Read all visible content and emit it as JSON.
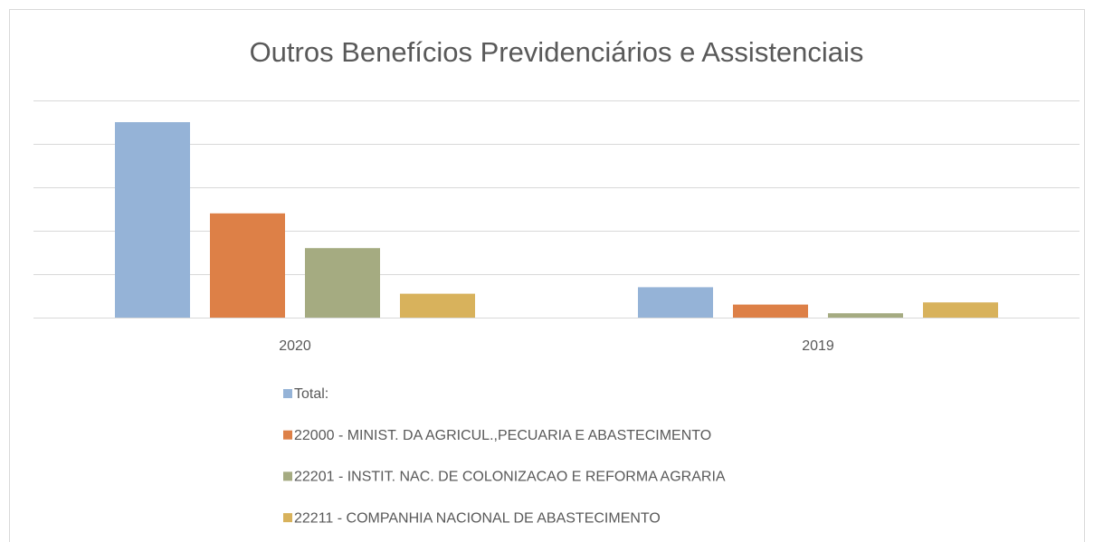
{
  "chart_data": {
    "type": "bar",
    "title": "Outros Benefícios Previdenciários e Assistenciais",
    "categories": [
      "2020",
      "2019"
    ],
    "series": [
      {
        "name": "Total:",
        "color": "#95b3d7",
        "values": [
          4.5,
          0.7
        ]
      },
      {
        "name": "22000 - MINIST. DA AGRICUL.,PECUARIA E ABASTECIMENTO",
        "color": "#dd8047",
        "values": [
          2.4,
          0.3
        ]
      },
      {
        "name": "22201 - INSTIT. NAC. DE COLONIZACAO E REFORMA AGRARIA",
        "color": "#a5ab81",
        "values": [
          1.6,
          0.1
        ]
      },
      {
        "name": "22211 - COMPANHIA NACIONAL DE ABASTECIMENTO",
        "color": "#d8b25c",
        "values": [
          0.55,
          0.35
        ]
      }
    ],
    "ylim": [
      0,
      5
    ],
    "yticks": [
      0,
      1,
      2,
      3,
      4,
      5
    ],
    "grid": true,
    "legend": "bottom"
  }
}
